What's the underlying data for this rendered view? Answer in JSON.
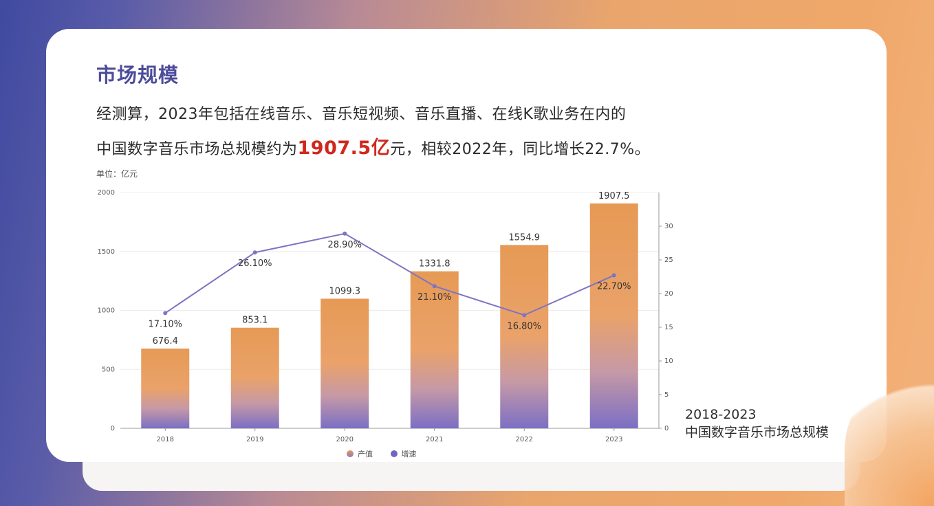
{
  "heading": "市场规模",
  "description": {
    "line1": "经测算，2023年包括在线音乐、音乐短视频、音乐直播、在线K歌业务在内的",
    "line2_prefix": "中国数字音乐市场总规模约为",
    "line2_highlight": "1907.5亿",
    "line2_suffix": "元，相较2022年，同比增长22.7%。"
  },
  "unit_label": "单位：亿元",
  "caption": {
    "line1": "2018-2023",
    "line2": "中国数字音乐市场总规模"
  },
  "legend": {
    "bar": "产值",
    "line": "增速"
  },
  "colors": {
    "heading": "#4d4c9b",
    "highlight": "#d0281c",
    "bar_top": "#e69a55",
    "bar_bottom": "#7b6fc4",
    "line": "#7d74c3"
  },
  "chart_data": {
    "type": "bar",
    "categories": [
      "2018",
      "2019",
      "2020",
      "2021",
      "2022",
      "2023"
    ],
    "series": [
      {
        "name": "产值",
        "type": "bar",
        "axis": "left",
        "values": [
          676.4,
          853.1,
          1099.3,
          1331.8,
          1554.9,
          1907.5
        ],
        "labels": [
          "676.4",
          "853.1",
          "1099.3",
          "1331.8",
          "1554.9",
          "1907.5"
        ]
      },
      {
        "name": "增速",
        "type": "line",
        "axis": "right",
        "values": [
          17.1,
          26.1,
          28.9,
          21.1,
          16.8,
          22.7
        ],
        "labels": [
          "17.10%",
          "26.10%",
          "28.90%",
          "21.10%",
          "16.80%",
          "22.70%"
        ]
      }
    ],
    "ylim": [
      0,
      2000
    ],
    "yticks": [
      0,
      500,
      1000,
      1500,
      2000
    ],
    "y2lim": [
      0,
      35
    ],
    "y2ticks": [
      0,
      5,
      10,
      15,
      20,
      25,
      30
    ],
    "grid": true,
    "legend_position": "bottom"
  }
}
